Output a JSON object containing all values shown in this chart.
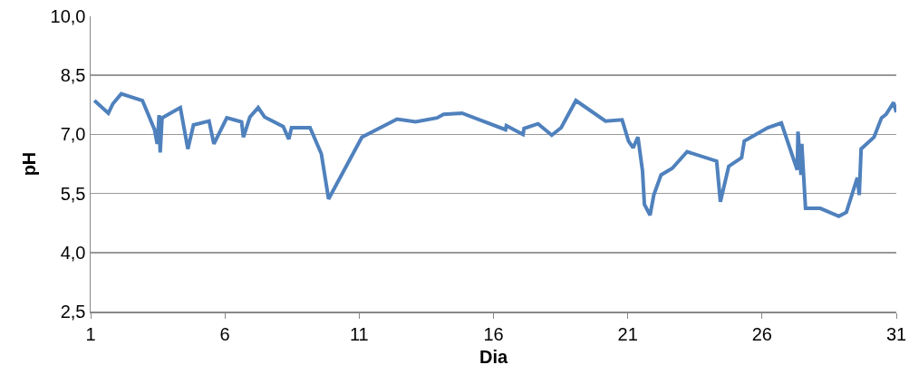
{
  "chart_data": {
    "type": "line",
    "xlabel": "Dia",
    "ylabel": "pH",
    "x": [
      1.14,
      1.66,
      1.83,
      2.14,
      2.93,
      3.38,
      3.48,
      3.55,
      3.59,
      3.66,
      4.34,
      4.62,
      4.83,
      5.41,
      5.59,
      6.07,
      6.62,
      6.69,
      6.93,
      7.24,
      7.48,
      8.17,
      8.38,
      8.48,
      9.17,
      9.59,
      9.86,
      11.1,
      12.41,
      13.1,
      13.9,
      14.14,
      14.83,
      16.45,
      16.48,
      17.1,
      17.14,
      17.66,
      18.17,
      18.52,
      19.07,
      20.17,
      20.79,
      21.03,
      21.2,
      21.38,
      21.55,
      21.62,
      21.83,
      21.97,
      22.24,
      22.66,
      23.21,
      24.31,
      24.45,
      24.76,
      25.24,
      25.34,
      26.21,
      26.72,
      27.31,
      27.34,
      27.45,
      27.48,
      27.62,
      28.17,
      28.86,
      29.14,
      29.55,
      29.62,
      29.69,
      30.17,
      30.45,
      30.62,
      30.9,
      31.0
    ],
    "series": [
      {
        "color": "#4f81bd",
        "values": [
          7.86,
          7.54,
          7.78,
          8.03,
          7.86,
          7.12,
          6.76,
          7.49,
          6.54,
          7.42,
          7.68,
          6.63,
          7.24,
          7.34,
          6.76,
          7.42,
          7.32,
          6.93,
          7.44,
          7.68,
          7.44,
          7.2,
          6.88,
          7.17,
          7.17,
          6.51,
          5.36,
          6.93,
          7.39,
          7.32,
          7.42,
          7.51,
          7.54,
          7.12,
          7.22,
          7.0,
          7.15,
          7.27,
          6.98,
          7.17,
          7.86,
          7.34,
          7.37,
          6.83,
          6.66,
          6.93,
          6.07,
          5.22,
          4.95,
          5.46,
          5.97,
          6.14,
          6.56,
          6.32,
          5.29,
          6.19,
          6.41,
          6.83,
          7.17,
          7.29,
          6.1,
          7.07,
          5.97,
          6.76,
          5.12,
          5.12,
          4.92,
          5.02,
          5.9,
          5.46,
          6.63,
          6.93,
          7.42,
          7.51,
          7.81,
          7.56
        ]
      }
    ],
    "xlim": [
      1,
      31
    ],
    "xticks": [
      1,
      6,
      11,
      16,
      21,
      26,
      31
    ],
    "ylim": [
      2.5,
      10
    ],
    "yticks": [
      {
        "value": 2.5,
        "label": "2,5"
      },
      {
        "value": 4,
        "label": "4,0"
      },
      {
        "value": 5.5,
        "label": "5,5"
      },
      {
        "value": 7,
        "label": "7,0"
      },
      {
        "value": 8.5,
        "label": "8,5"
      },
      {
        "value": 10,
        "label": "10,0"
      }
    ],
    "grid": "y",
    "marker": "none",
    "line_style": "solid"
  }
}
